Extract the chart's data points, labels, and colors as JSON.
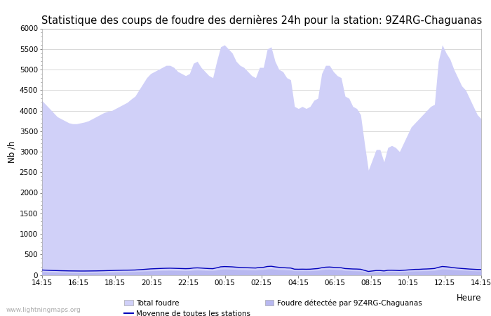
{
  "title": "Statistique des coups de foudre des dernières 24h pour la station: 9Z4RG-Chaguanas",
  "xlabel": "Heure",
  "ylabel": "Nb /h",
  "xtick_labels": [
    "14:15",
    "16:15",
    "18:15",
    "20:15",
    "22:15",
    "00:15",
    "02:15",
    "04:15",
    "06:15",
    "08:15",
    "10:15",
    "12:15",
    "14:15"
  ],
  "ylim": [
    0,
    6000
  ],
  "yticks": [
    0,
    500,
    1000,
    1500,
    2000,
    2500,
    3000,
    3500,
    4000,
    4500,
    5000,
    5500,
    6000
  ],
  "fill_color_total": "#d0d0f8",
  "fill_color_station": "#b8b8f0",
  "line_color_mean": "#0000bb",
  "background_color": "#ffffff",
  "plot_bg_color": "#ffffff",
  "grid_color": "#d8d8d8",
  "watermark": "www.lightningmaps.org",
  "title_fontsize": 10.5,
  "total_foudre": [
    4250,
    4150,
    4050,
    3950,
    3850,
    3800,
    3750,
    3700,
    3680,
    3680,
    3700,
    3720,
    3750,
    3800,
    3850,
    3900,
    3950,
    3980,
    4000,
    4050,
    4100,
    4150,
    4200,
    4280,
    4350,
    4500,
    4650,
    4800,
    4900,
    4950,
    5000,
    5050,
    5100,
    5100,
    5050,
    4950,
    4900,
    4850,
    4900,
    5150,
    5200,
    5050,
    4950,
    4850,
    4800,
    5200,
    5550,
    5600,
    5500,
    5400,
    5200,
    5100,
    5050,
    4950,
    4850,
    4800,
    5050,
    5050,
    5500,
    5550,
    5200,
    5000,
    4950,
    4800,
    4750,
    4100,
    4050,
    4100,
    4050,
    4100,
    4250,
    4300,
    4900,
    5100,
    5100,
    4950,
    4850,
    4800,
    4350,
    4300,
    4100,
    4050,
    3900,
    3200,
    2550,
    2800,
    3050,
    3050,
    2750,
    3100,
    3150,
    3100,
    3000,
    3200,
    3400,
    3600,
    3700,
    3800,
    3900,
    4000,
    4100,
    4150,
    5200,
    5600,
    5400,
    5250,
    5000,
    4800,
    4600,
    4500,
    4300,
    4100,
    3900,
    3800
  ],
  "station_foudre": [
    80,
    75,
    70,
    68,
    65,
    62,
    60,
    58,
    57,
    56,
    55,
    55,
    56,
    57,
    58,
    60,
    62,
    65,
    67,
    70,
    72,
    75,
    76,
    78,
    80,
    85,
    90,
    95,
    100,
    103,
    105,
    108,
    110,
    112,
    110,
    108,
    105,
    103,
    105,
    115,
    118,
    115,
    110,
    107,
    105,
    120,
    138,
    142,
    140,
    137,
    132,
    128,
    125,
    122,
    120,
    118,
    128,
    130,
    143,
    148,
    138,
    130,
    125,
    120,
    118,
    100,
    100,
    100,
    100,
    100,
    105,
    110,
    125,
    135,
    138,
    132,
    128,
    123,
    108,
    105,
    100,
    98,
    93,
    75,
    60,
    68,
    75,
    75,
    70,
    80,
    80,
    78,
    75,
    80,
    85,
    90,
    95,
    95,
    100,
    100,
    105,
    110,
    130,
    145,
    140,
    135,
    125,
    120,
    115,
    110,
    105,
    100,
    95,
    95
  ],
  "mean_line": [
    120,
    115,
    110,
    107,
    105,
    102,
    100,
    98,
    97,
    96,
    95,
    95,
    96,
    97,
    98,
    100,
    102,
    105,
    107,
    110,
    112,
    115,
    116,
    118,
    120,
    127,
    133,
    140,
    147,
    151,
    155,
    159,
    162,
    164,
    161,
    158,
    155,
    152,
    155,
    168,
    172,
    167,
    160,
    155,
    152,
    173,
    197,
    203,
    200,
    196,
    188,
    183,
    178,
    174,
    171,
    168,
    183,
    185,
    205,
    211,
    196,
    185,
    178,
    171,
    168,
    140,
    138,
    140,
    138,
    140,
    148,
    155,
    175,
    188,
    192,
    185,
    180,
    174,
    155,
    150,
    145,
    143,
    138,
    110,
    85,
    96,
    107,
    107,
    97,
    112,
    113,
    110,
    106,
    113,
    120,
    128,
    135,
    136,
    142,
    145,
    150,
    157,
    185,
    205,
    198,
    188,
    175,
    165,
    157,
    150,
    143,
    138,
    133,
    131
  ]
}
